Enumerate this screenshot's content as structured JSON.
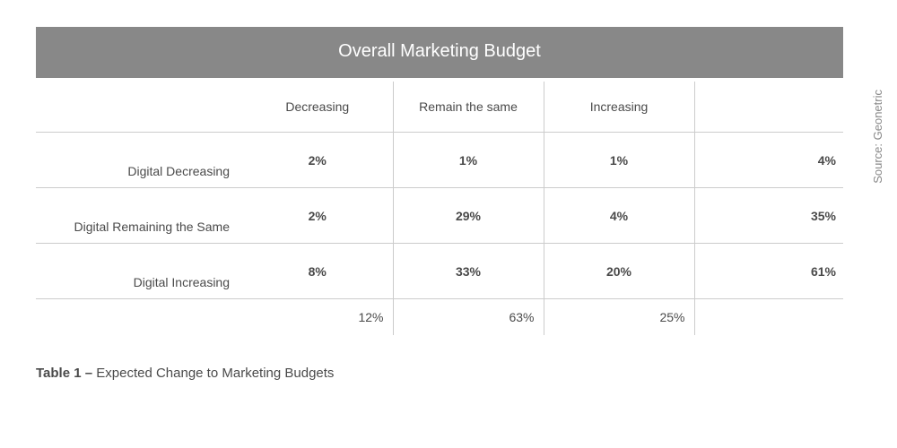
{
  "title": "Overall Marketing Budget",
  "columns": [
    "Decreasing",
    "Remain the same",
    "Increasing"
  ],
  "rows": [
    {
      "label": "Digital Decreasing",
      "values": [
        "2%",
        "1%",
        "1%"
      ],
      "total": "4%"
    },
    {
      "label": "Digital Remaining the Same",
      "values": [
        "2%",
        "29%",
        "4%"
      ],
      "total": "35%"
    },
    {
      "label": "Digital Increasing",
      "values": [
        "8%",
        "33%",
        "20%"
      ],
      "total": "61%"
    }
  ],
  "col_totals": [
    "12%",
    "63%",
    "25%"
  ],
  "caption_bold": "Table 1 – ",
  "caption_rest": "Expected Change to Marketing Budgets",
  "source": "Source: Geonetric",
  "style": {
    "title_bg": "#888888",
    "title_fg": "#ffffff",
    "border_color": "#cccccc",
    "text_color": "#4a4a4a",
    "caption_color": "#4a4a4a",
    "source_color": "#888888",
    "title_fontsize": 20,
    "cell_fontsize": 14,
    "caption_fontsize": 15
  }
}
